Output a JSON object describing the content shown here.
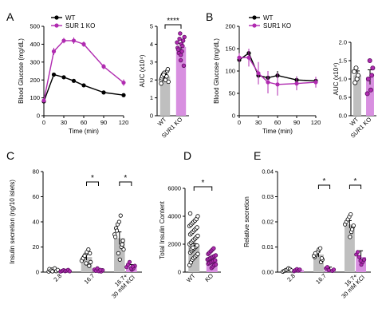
{
  "colors": {
    "wt": "#000000",
    "ko": "#b02bb0",
    "ko_fill": "#d88fe0",
    "wt_fill": "#bfbfbf"
  },
  "chart_data": [
    {
      "id": "A-curve",
      "panel_letter": "A",
      "type": "line",
      "ylabel": "Blood Glucose (mg/dL)",
      "xlabel": "Time (min)",
      "xlim": [
        0,
        120
      ],
      "ylim": [
        0,
        500
      ],
      "xticks": [
        "0",
        "30",
        "60",
        "90",
        "120"
      ],
      "yticks": [
        "0",
        "100",
        "200",
        "300",
        "400",
        "500"
      ],
      "legend_position": "top-left",
      "x": [
        0,
        15,
        30,
        45,
        60,
        90,
        120
      ],
      "series": [
        {
          "name": "WT",
          "key": "wt",
          "values": [
            80,
            230,
            215,
            195,
            170,
            130,
            115
          ],
          "err": [
            5,
            8,
            8,
            8,
            8,
            6,
            6
          ]
        },
        {
          "name": "SUR 1 KO",
          "key": "ko",
          "values": [
            85,
            360,
            420,
            420,
            400,
            275,
            185
          ],
          "err": [
            8,
            20,
            15,
            18,
            15,
            15,
            18
          ]
        }
      ]
    },
    {
      "id": "A-auc",
      "type": "bar",
      "ylabel": "AUC (x10⁴)",
      "ylim": [
        0,
        5
      ],
      "yticks": [
        "0",
        "1",
        "2",
        "3",
        "4",
        "5"
      ],
      "categories": [
        "WT",
        "SUR1 KO"
      ],
      "values": [
        2.2,
        3.85
      ],
      "err": [
        0.1,
        0.2
      ],
      "significance": "****",
      "points": [
        [
          2.0,
          2.1,
          2.3,
          2.4,
          2.2,
          2.5,
          1.9,
          2.1,
          2.3,
          2.4,
          2.0,
          2.2,
          2.6,
          1.8,
          2.2,
          2.3
        ],
        [
          3.1,
          3.6,
          4.2,
          4.4,
          3.8,
          3.5,
          4.6,
          4.0,
          3.9,
          2.8,
          4.1,
          3.7,
          4.3,
          3.4
        ]
      ]
    },
    {
      "id": "B-curve",
      "panel_letter": "B",
      "type": "line",
      "ylabel": "Blood Glucose (mg/dL)",
      "xlabel": "Time (min)",
      "xlim": [
        0,
        120
      ],
      "ylim": [
        0,
        200
      ],
      "xticks": [
        "0",
        "30",
        "60",
        "90",
        "120"
      ],
      "yticks": [
        "0",
        "50",
        "100",
        "150",
        "200"
      ],
      "legend_position": "top-right",
      "x": [
        0,
        15,
        30,
        45,
        60,
        90,
        120
      ],
      "series": [
        {
          "name": "WT",
          "key": "wt",
          "values": [
            125,
            140,
            90,
            85,
            90,
            80,
            78
          ],
          "err": [
            5,
            10,
            10,
            10,
            10,
            8,
            8
          ]
        },
        {
          "name": "SUR1 KO",
          "key": "ko",
          "values": [
            130,
            130,
            95,
            75,
            70,
            72,
            75
          ],
          "err": [
            10,
            20,
            25,
            25,
            25,
            15,
            12
          ]
        }
      ]
    },
    {
      "id": "B-auc",
      "type": "bar",
      "ylabel": "AUC (x10⁴)",
      "ylim": [
        0,
        2
      ],
      "yticks": [
        "0.0",
        "0.5",
        "1.0",
        "1.5",
        "2.0"
      ],
      "categories": [
        "WT",
        "SUR1 KO"
      ],
      "values": [
        1.1,
        1.05
      ],
      "err": [
        0.12,
        0.2
      ],
      "points": [
        [
          1.2,
          0.9,
          1.3,
          1.0,
          1.1
        ],
        [
          1.5,
          0.7,
          1.1,
          1.3,
          0.6,
          1.0
        ]
      ]
    },
    {
      "id": "C",
      "panel_letter": "C",
      "type": "bar",
      "ylabel": "Insulin secretion (ng/10 islets)",
      "ylim": [
        0,
        80
      ],
      "yticks": [
        "0",
        "20",
        "40",
        "60",
        "80"
      ],
      "categories": [
        "2.8",
        "16.7",
        "16.7 + 30 mM KCl"
      ],
      "wt": [
        1.5,
        12,
        27
      ],
      "wt_err": [
        0.8,
        2.5,
        5
      ],
      "ko": [
        1.0,
        1.5,
        4.5
      ],
      "ko_err": [
        0.5,
        0.8,
        1.5
      ],
      "wt_points": [
        [
          0.5,
          1.5,
          2,
          1,
          3,
          0.8,
          1.8,
          2.5,
          1.2,
          0.6
        ],
        [
          5,
          8,
          10,
          12,
          14,
          16,
          18,
          15,
          9,
          11,
          13,
          7
        ],
        [
          10,
          20,
          25,
          30,
          35,
          38,
          40,
          45,
          22,
          18,
          28,
          33,
          15
        ]
      ],
      "ko_points": [
        [
          0.5,
          1,
          1.5,
          0.8,
          1.2,
          1.8,
          0.7
        ],
        [
          0.5,
          1.5,
          2,
          1,
          3,
          0.8,
          1.8
        ],
        [
          2,
          3,
          5,
          4,
          6,
          8,
          3,
          4.5
        ]
      ],
      "significance": [
        "",
        "*",
        "*"
      ]
    },
    {
      "id": "D",
      "panel_letter": "D",
      "type": "bar",
      "ylabel": "Total Insulin Content",
      "ylim": [
        0,
        6000
      ],
      "yticks": [
        "0",
        "2000",
        "4000",
        "6000"
      ],
      "categories": [
        "WT",
        "KO"
      ],
      "values": [
        1900,
        900
      ],
      "err": [
        150,
        80
      ],
      "significance": "*",
      "points": [
        [
          500,
          700,
          900,
          1000,
          1100,
          1200,
          1300,
          1400,
          1500,
          1600,
          1700,
          1800,
          1900,
          2000,
          2100,
          2200,
          2300,
          2400,
          2500,
          2600,
          2700,
          2800,
          2900,
          3000,
          3100,
          3200,
          3300,
          3400,
          3500,
          3600,
          3700,
          3800,
          4000,
          4200,
          1650,
          1750
        ],
        [
          300,
          400,
          500,
          550,
          600,
          650,
          700,
          750,
          800,
          850,
          900,
          950,
          1000,
          1050,
          1100,
          1150,
          1200,
          1300,
          1400,
          1500,
          1600,
          1700
        ]
      ]
    },
    {
      "id": "E",
      "panel_letter": "E",
      "type": "bar",
      "ylabel": "Relative secretion",
      "ylim": [
        0,
        0.04
      ],
      "yticks": [
        "0.00",
        "0.01",
        "0.02",
        "0.03",
        "0.04"
      ],
      "categories": [
        "2.8",
        "16.7",
        "16.7+ 30 mM KCl"
      ],
      "wt": [
        0.001,
        0.007,
        0.019
      ],
      "wt_err": [
        0.0003,
        0.001,
        0.0015
      ],
      "ko": [
        0.0008,
        0.0012,
        0.006
      ],
      "ko_err": [
        0.0003,
        0.0008,
        0.0025
      ],
      "wt_points": [
        [
          0.0002,
          0.0005,
          0.0008,
          0.001,
          0.0015,
          0.0012,
          0.0007
        ],
        [
          0.004,
          0.005,
          0.006,
          0.007,
          0.008,
          0.009,
          0.0095,
          0.0055,
          0.0065,
          0.0075
        ],
        [
          0.014,
          0.016,
          0.018,
          0.019,
          0.02,
          0.021,
          0.022,
          0.023,
          0.017,
          0.0185
        ]
      ],
      "ko_points": [
        [
          0.0004,
          0.0008,
          0.0012,
          0.0006,
          0.001
        ],
        [
          0.0005,
          0.001,
          0.0015,
          0.002,
          0.0008
        ],
        [
          0.003,
          0.004,
          0.005,
          0.007,
          0.008,
          0.006,
          0.0045
        ]
      ],
      "significance": [
        "",
        "*",
        "*"
      ]
    }
  ]
}
